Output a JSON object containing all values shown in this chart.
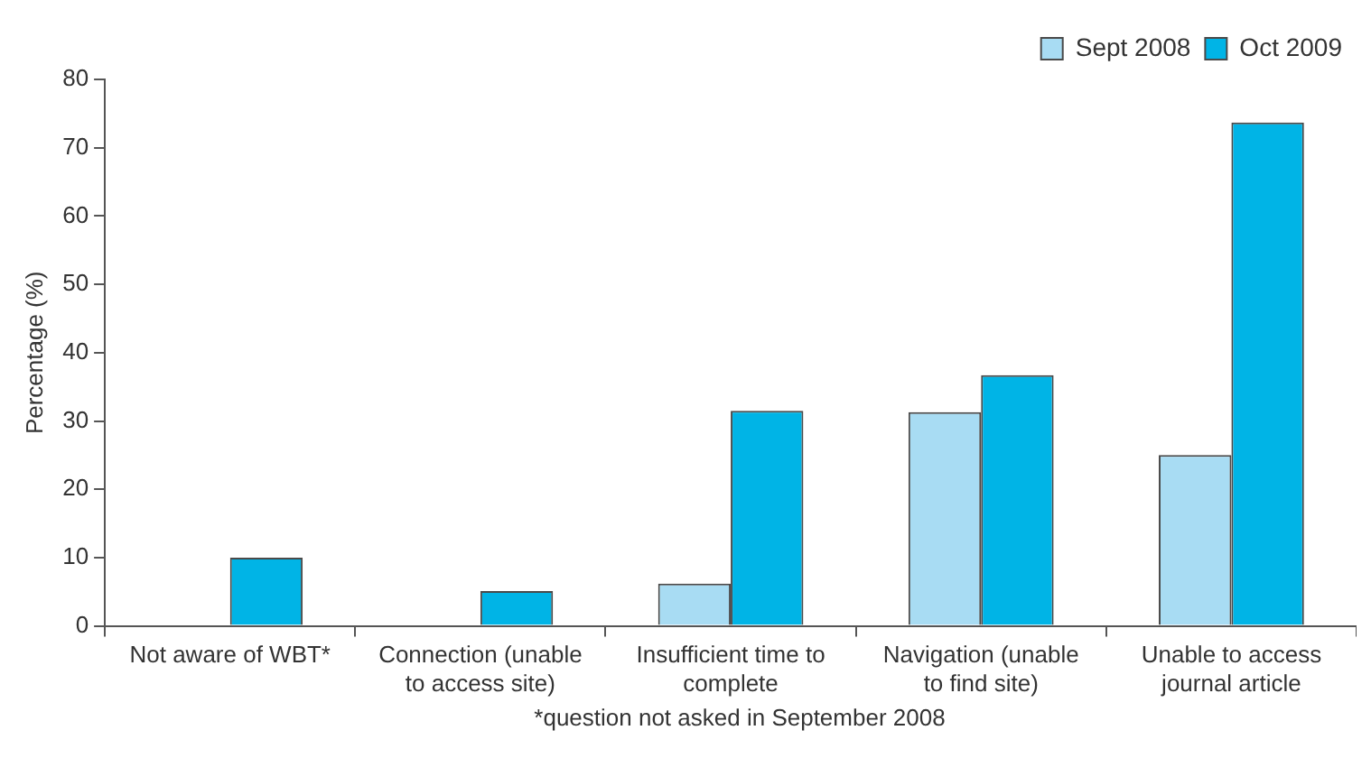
{
  "chart_data": {
    "type": "bar",
    "ylabel": "Percentage (%)",
    "categories": [
      "Not aware of WBT*",
      "Connection (unable to access site)",
      "Insufficient time to complete",
      "Navigation (unable to find site)",
      "Unable to access journal article"
    ],
    "series": [
      {
        "name": "Sept 2008",
        "color": "#a8dcf3",
        "values": [
          null,
          0,
          6.2,
          31.3,
          25
        ]
      },
      {
        "name": "Oct 2009",
        "color": "#00b4e6",
        "values": [
          10,
          5.1,
          31.5,
          36.7,
          73.7
        ]
      }
    ],
    "ylim": [
      0,
      80
    ],
    "yticks": [
      0,
      10,
      20,
      30,
      40,
      50,
      60,
      70,
      80
    ],
    "grid": false,
    "legend": "top right",
    "annotations": [
      "*question not asked in September 2008"
    ]
  }
}
